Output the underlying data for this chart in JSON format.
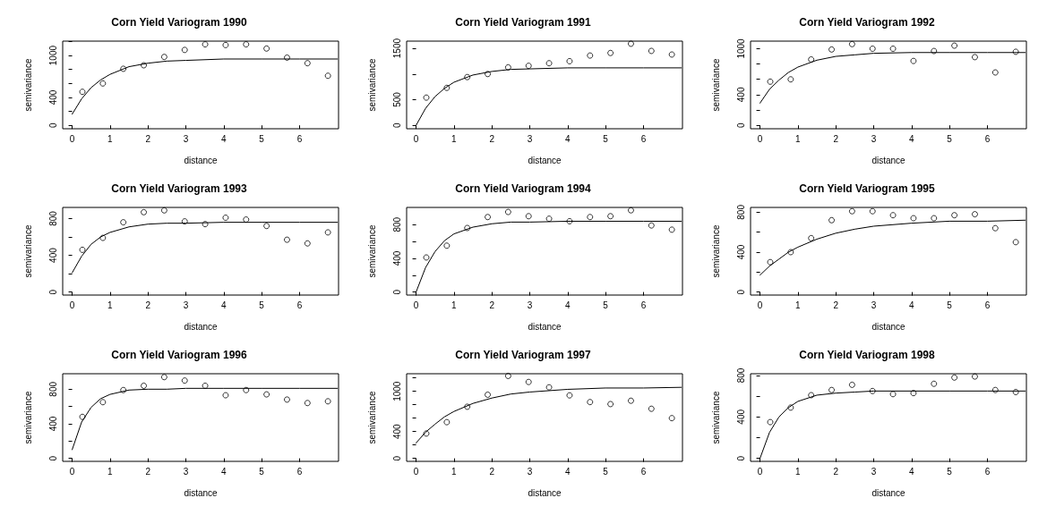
{
  "chart_data": [
    {
      "type": "scatter",
      "title": "Corn Yield Variogram 1990",
      "xlabel": "distance",
      "ylabel": "semivariance",
      "marker": "circle",
      "xlim": [
        -0.25,
        7.03
      ],
      "xticks": [
        0,
        1,
        2,
        3,
        4,
        5,
        6
      ],
      "ylim": [
        -49,
        1206
      ],
      "yticks": [
        0,
        {
          "value": 200,
          "label": null
        },
        400,
        {
          "value": 600,
          "label": null
        },
        {
          "value": 800,
          "label": null
        },
        1000,
        {
          "value": 1200,
          "label": null
        }
      ],
      "series": [
        {
          "color": "#000000",
          "x": [
            0.27,
            0.81,
            1.35,
            1.89,
            2.43,
            2.97,
            3.51,
            4.05,
            4.59,
            5.13,
            5.67,
            6.21,
            6.75
          ],
          "values": [
            480,
            600,
            810,
            860,
            980,
            1080,
            1160,
            1150,
            1160,
            1100,
            970,
            890,
            710
          ]
        },
        {
          "type": "line",
          "color": "#000000",
          "marker": "none",
          "x": [
            0,
            0.25,
            0.5,
            0.75,
            1,
            1.5,
            2,
            2.5,
            3,
            4,
            5,
            6,
            7
          ],
          "values": [
            160,
            380,
            540,
            650,
            730,
            840,
            890,
            920,
            930,
            950,
            950,
            950,
            950
          ]
        }
      ]
    },
    {
      "type": "scatter",
      "title": "Corn Yield Variogram 1991",
      "xlabel": "distance",
      "ylabel": "semivariance",
      "marker": "circle",
      "xlim": [
        -0.25,
        7.03
      ],
      "xticks": [
        0,
        1,
        2,
        3,
        4,
        5,
        6
      ],
      "ylim": [
        -67,
        1641
      ],
      "yticks": [
        0,
        500,
        {
          "value": 1000,
          "label": null
        },
        1500
      ],
      "series": [
        {
          "color": "#000000",
          "x": [
            0.27,
            0.81,
            1.35,
            1.89,
            2.43,
            2.97,
            3.51,
            4.05,
            4.59,
            5.13,
            5.67,
            6.21,
            6.75
          ],
          "values": [
            540,
            730,
            940,
            1000,
            1130,
            1160,
            1210,
            1250,
            1360,
            1410,
            1590,
            1450,
            1380
          ]
        },
        {
          "type": "line",
          "color": "#000000",
          "marker": "none",
          "x": [
            0,
            0.25,
            0.5,
            0.75,
            1,
            1.5,
            2,
            2.5,
            3,
            4,
            5,
            6,
            7
          ],
          "values": [
            0,
            330,
            560,
            720,
            840,
            980,
            1050,
            1090,
            1100,
            1120,
            1120,
            1120,
            1120
          ]
        }
      ]
    },
    {
      "type": "scatter",
      "title": "Corn Yield Variogram 1992",
      "xlabel": "distance",
      "ylabel": "semivariance",
      "marker": "circle",
      "xlim": [
        -0.25,
        7.03
      ],
      "xticks": [
        0,
        1,
        2,
        3,
        4,
        5,
        6
      ],
      "ylim": [
        -45,
        1099
      ],
      "yticks": [
        0,
        {
          "value": 200,
          "label": null
        },
        400,
        {
          "value": 600,
          "label": null
        },
        {
          "value": 800,
          "label": null
        },
        1000
      ],
      "series": [
        {
          "color": "#000000",
          "x": [
            0.27,
            0.81,
            1.35,
            1.89,
            2.43,
            2.97,
            3.51,
            4.05,
            4.59,
            5.13,
            5.67,
            6.21,
            6.75
          ],
          "values": [
            570,
            600,
            860,
            990,
            1060,
            1000,
            1000,
            840,
            970,
            1040,
            890,
            690,
            960
          ]
        },
        {
          "type": "line",
          "color": "#000000",
          "marker": "none",
          "x": [
            0,
            0.25,
            0.5,
            0.75,
            1,
            1.5,
            2,
            2.5,
            3,
            4,
            5,
            6,
            7
          ],
          "values": [
            290,
            470,
            590,
            690,
            760,
            850,
            900,
            920,
            940,
            950,
            950,
            950,
            950
          ]
        }
      ]
    },
    {
      "type": "scatter",
      "title": "Corn Yield Variogram 1993",
      "xlabel": "distance",
      "ylabel": "semivariance",
      "marker": "circle",
      "xlim": [
        -0.25,
        7.03
      ],
      "xticks": [
        0,
        1,
        2,
        3,
        4,
        5,
        6
      ],
      "ylim": [
        -33,
        922
      ],
      "yticks": [
        0,
        {
          "value": 200,
          "label": null
        },
        400,
        {
          "value": 600,
          "label": null
        },
        800
      ],
      "series": [
        {
          "color": "#000000",
          "x": [
            0.27,
            0.81,
            1.35,
            1.89,
            2.43,
            2.97,
            3.51,
            4.05,
            4.59,
            5.13,
            5.67,
            6.21,
            6.75
          ],
          "values": [
            460,
            590,
            760,
            870,
            890,
            770,
            740,
            810,
            790,
            720,
            570,
            530,
            650
          ]
        },
        {
          "type": "line",
          "color": "#000000",
          "marker": "none",
          "x": [
            0,
            0.25,
            0.5,
            0.75,
            1,
            1.5,
            2,
            2.5,
            3,
            4,
            5,
            6,
            7
          ],
          "values": [
            210,
            390,
            520,
            600,
            650,
            710,
            740,
            750,
            750,
            760,
            760,
            760,
            760
          ]
        }
      ]
    },
    {
      "type": "scatter",
      "title": "Corn Yield Variogram 1994",
      "xlabel": "distance",
      "ylabel": "semivariance",
      "marker": "circle",
      "xlim": [
        -0.25,
        7.03
      ],
      "xticks": [
        0,
        1,
        2,
        3,
        4,
        5,
        6
      ],
      "ylim": [
        -36,
        1004
      ],
      "yticks": [
        0,
        {
          "value": 200,
          "label": null
        },
        400,
        {
          "value": 600,
          "label": null
        },
        800
      ],
      "series": [
        {
          "color": "#000000",
          "x": [
            0.27,
            0.81,
            1.35,
            1.89,
            2.43,
            2.97,
            3.51,
            4.05,
            4.59,
            5.13,
            5.67,
            6.21,
            6.75
          ],
          "values": [
            410,
            550,
            760,
            890,
            950,
            900,
            870,
            840,
            890,
            900,
            970,
            790,
            740
          ]
        },
        {
          "type": "line",
          "color": "#000000",
          "marker": "none",
          "x": [
            0,
            0.25,
            0.5,
            0.75,
            1,
            1.5,
            2,
            2.5,
            3,
            4,
            5,
            6,
            7
          ],
          "values": [
            0,
            290,
            480,
            610,
            690,
            770,
            810,
            830,
            830,
            840,
            840,
            840,
            840
          ]
        }
      ]
    },
    {
      "type": "scatter",
      "title": "Corn Yield Variogram 1995",
      "xlabel": "distance",
      "ylabel": "semivariance",
      "marker": "circle",
      "xlim": [
        -0.25,
        7.03
      ],
      "xticks": [
        0,
        1,
        2,
        3,
        4,
        5,
        6
      ],
      "ylim": [
        -30,
        848
      ],
      "yticks": [
        0,
        {
          "value": 200,
          "label": null
        },
        400,
        {
          "value": 600,
          "label": null
        },
        800
      ],
      "series": [
        {
          "color": "#000000",
          "x": [
            0.27,
            0.81,
            1.35,
            1.89,
            2.43,
            2.97,
            3.51,
            4.05,
            4.59,
            5.13,
            5.67,
            6.21,
            6.75
          ],
          "values": [
            300,
            400,
            540,
            720,
            810,
            810,
            770,
            740,
            740,
            770,
            780,
            640,
            500
          ]
        },
        {
          "type": "line",
          "color": "#000000",
          "marker": "none",
          "x": [
            0,
            0.25,
            0.5,
            0.75,
            1,
            1.5,
            2,
            2.5,
            3,
            4,
            5,
            6,
            7
          ],
          "values": [
            170,
            260,
            330,
            400,
            450,
            530,
            590,
            630,
            660,
            690,
            710,
            710,
            720
          ]
        }
      ]
    },
    {
      "type": "scatter",
      "title": "Corn Yield Variogram 1996",
      "xlabel": "distance",
      "ylabel": "semivariance",
      "marker": "circle",
      "xlim": [
        -0.25,
        7.03
      ],
      "xticks": [
        0,
        1,
        2,
        3,
        4,
        5,
        6
      ],
      "ylim": [
        -35,
        979
      ],
      "yticks": [
        0,
        {
          "value": 200,
          "label": null
        },
        400,
        {
          "value": 600,
          "label": null
        },
        800
      ],
      "series": [
        {
          "color": "#000000",
          "x": [
            0.27,
            0.81,
            1.35,
            1.89,
            2.43,
            2.97,
            3.51,
            4.05,
            4.59,
            5.13,
            5.67,
            6.21,
            6.75
          ],
          "values": [
            480,
            650,
            790,
            840,
            940,
            900,
            840,
            730,
            790,
            740,
            680,
            640,
            660
          ]
        },
        {
          "type": "line",
          "color": "#000000",
          "marker": "none",
          "x": [
            0,
            0.25,
            0.5,
            0.75,
            1,
            1.5,
            2,
            2.5,
            3,
            4,
            5,
            6,
            7
          ],
          "values": [
            100,
            420,
            590,
            690,
            740,
            790,
            800,
            800,
            810,
            810,
            810,
            810,
            810
          ]
        }
      ]
    },
    {
      "type": "scatter",
      "title": "Corn Yield Variogram 1997",
      "xlabel": "distance",
      "ylabel": "semivariance",
      "marker": "circle",
      "xlim": [
        -0.25,
        7.03
      ],
      "xticks": [
        0,
        1,
        2,
        3,
        4,
        5,
        6
      ],
      "ylim": [
        -45,
        1263
      ],
      "yticks": [
        0,
        {
          "value": 200,
          "label": null
        },
        400,
        {
          "value": 600,
          "label": null
        },
        {
          "value": 800,
          "label": null
        },
        1000,
        {
          "value": 1200,
          "label": null
        }
      ],
      "series": [
        {
          "color": "#000000",
          "x": [
            0.27,
            0.81,
            1.35,
            1.89,
            2.43,
            2.97,
            3.51,
            4.05,
            4.59,
            5.13,
            5.67,
            6.21,
            6.75
          ],
          "values": [
            370,
            540,
            770,
            950,
            1230,
            1140,
            1060,
            940,
            840,
            810,
            860,
            740,
            600
          ]
        },
        {
          "type": "line",
          "color": "#000000",
          "marker": "none",
          "x": [
            0,
            0.25,
            0.5,
            0.75,
            1,
            1.5,
            2,
            2.5,
            3,
            4,
            5,
            6,
            7
          ],
          "values": [
            230,
            390,
            510,
            620,
            700,
            820,
            900,
            960,
            990,
            1030,
            1050,
            1050,
            1060
          ]
        }
      ]
    },
    {
      "type": "scatter",
      "title": "Corn Yield Variogram 1998",
      "xlabel": "distance",
      "ylabel": "semivariance",
      "marker": "circle",
      "xlim": [
        -0.25,
        7.03
      ],
      "xticks": [
        0,
        1,
        2,
        3,
        4,
        5,
        6
      ],
      "ylim": [
        -29,
        817
      ],
      "yticks": [
        0,
        {
          "value": 200,
          "label": null
        },
        400,
        {
          "value": 600,
          "label": null
        },
        800
      ],
      "series": [
        {
          "color": "#000000",
          "x": [
            0.27,
            0.81,
            1.35,
            1.89,
            2.43,
            2.97,
            3.51,
            4.05,
            4.59,
            5.13,
            5.67,
            6.21,
            6.75
          ],
          "values": [
            350,
            490,
            610,
            660,
            710,
            650,
            620,
            630,
            720,
            780,
            790,
            660,
            640
          ]
        },
        {
          "type": "line",
          "color": "#000000",
          "marker": "none",
          "x": [
            0,
            0.25,
            0.5,
            0.75,
            1,
            1.5,
            2,
            2.5,
            3,
            4,
            5,
            6,
            7
          ],
          "values": [
            0,
            250,
            400,
            490,
            550,
            610,
            630,
            640,
            650,
            650,
            650,
            650,
            650
          ]
        }
      ]
    }
  ]
}
